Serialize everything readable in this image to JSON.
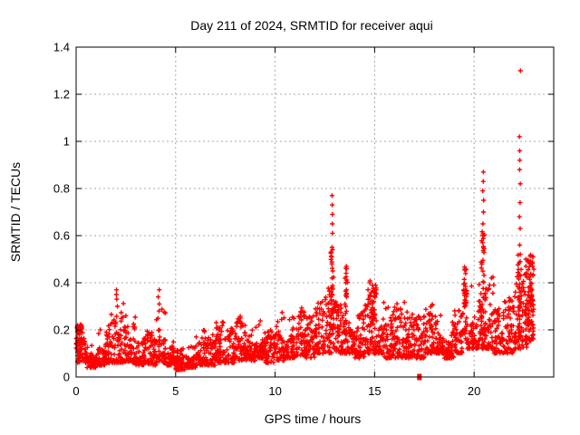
{
  "page": {
    "background": "#ffffff"
  },
  "chart_data": {
    "type": "scatter",
    "title": "Day 211 of 2024, SRMTID for receiver aqui",
    "xlabel": "GPS time / hours",
    "ylabel": "SRMTID / TECUs",
    "xlim": [
      0,
      24
    ],
    "ylim": [
      0,
      1.4
    ],
    "xticks": {
      "values": [
        0,
        5,
        10,
        15,
        20
      ],
      "labels": [
        "0",
        "5",
        "10",
        "15",
        "20"
      ]
    },
    "yticks": {
      "values": [
        0,
        0.2,
        0.4,
        0.6,
        0.8,
        1.0,
        1.2,
        1.4
      ],
      "labels": [
        "0",
        "0.2",
        "0.4",
        "0.6",
        "0.8",
        "1",
        "1.2",
        "1.4"
      ]
    },
    "grid": true,
    "legend": false,
    "marker": "plus",
    "marker_color": "#ff0000",
    "grid_color": "#a8a8a8",
    "border_color": "#000000",
    "data_end_hour": 23.0,
    "band_envelope_bins": [
      [
        0.0,
        0.06,
        0.23,
        55
      ],
      [
        0.5,
        0.04,
        0.15,
        55
      ],
      [
        1.0,
        0.05,
        0.22,
        55
      ],
      [
        1.5,
        0.06,
        0.3,
        55
      ],
      [
        2.0,
        0.06,
        0.32,
        55
      ],
      [
        2.5,
        0.06,
        0.26,
        55
      ],
      [
        3.0,
        0.05,
        0.18,
        55
      ],
      [
        3.5,
        0.05,
        0.2,
        55
      ],
      [
        4.0,
        0.06,
        0.3,
        55
      ],
      [
        4.5,
        0.05,
        0.16,
        55
      ],
      [
        5.0,
        0.03,
        0.12,
        55
      ],
      [
        5.5,
        0.04,
        0.15,
        55
      ],
      [
        6.0,
        0.05,
        0.2,
        55
      ],
      [
        6.5,
        0.05,
        0.18,
        55
      ],
      [
        7.0,
        0.06,
        0.24,
        55
      ],
      [
        7.5,
        0.06,
        0.22,
        55
      ],
      [
        8.0,
        0.07,
        0.26,
        55
      ],
      [
        8.5,
        0.07,
        0.2,
        55
      ],
      [
        9.0,
        0.08,
        0.24,
        55
      ],
      [
        9.5,
        0.06,
        0.2,
        55
      ],
      [
        10.0,
        0.07,
        0.28,
        55
      ],
      [
        10.5,
        0.08,
        0.26,
        55
      ],
      [
        11.0,
        0.09,
        0.3,
        55
      ],
      [
        11.5,
        0.08,
        0.26,
        55
      ],
      [
        12.0,
        0.1,
        0.32,
        55
      ],
      [
        12.5,
        0.1,
        0.4,
        55
      ],
      [
        13.0,
        0.1,
        0.35,
        55
      ],
      [
        13.5,
        0.1,
        0.4,
        55
      ],
      [
        14.0,
        0.08,
        0.3,
        55
      ],
      [
        14.5,
        0.1,
        0.42,
        55
      ],
      [
        15.0,
        0.1,
        0.36,
        55
      ],
      [
        15.5,
        0.08,
        0.3,
        55
      ],
      [
        16.0,
        0.08,
        0.32,
        55
      ],
      [
        16.5,
        0.08,
        0.28,
        55
      ],
      [
        17.0,
        0.08,
        0.26,
        55
      ],
      [
        17.5,
        0.1,
        0.32,
        55
      ],
      [
        18.0,
        0.1,
        0.3,
        55
      ],
      [
        18.5,
        0.08,
        0.26,
        55
      ],
      [
        19.0,
        0.1,
        0.3,
        55
      ],
      [
        19.5,
        0.12,
        0.4,
        55
      ],
      [
        20.0,
        0.12,
        0.42,
        55
      ],
      [
        20.5,
        0.12,
        0.45,
        55
      ],
      [
        21.0,
        0.1,
        0.3,
        55
      ],
      [
        21.5,
        0.1,
        0.35,
        55
      ],
      [
        22.0,
        0.12,
        0.45,
        55
      ],
      [
        22.5,
        0.15,
        0.5,
        55
      ]
    ],
    "dense_clusters": [
      [
        0.0,
        0.3,
        0.13,
        0.23,
        28
      ],
      [
        12.8,
        12.95,
        0.2,
        0.55,
        22
      ],
      [
        13.5,
        13.65,
        0.18,
        0.47,
        16
      ],
      [
        14.6,
        15.1,
        0.22,
        0.4,
        40
      ],
      [
        19.45,
        19.65,
        0.3,
        0.47,
        26
      ],
      [
        20.35,
        20.55,
        0.15,
        0.62,
        30
      ],
      [
        22.2,
        22.4,
        0.15,
        0.55,
        30
      ],
      [
        22.55,
        22.7,
        0.12,
        0.45,
        22
      ],
      [
        22.7,
        23.0,
        0.3,
        0.52,
        40
      ]
    ],
    "spike_columns": [
      {
        "x": 2.05,
        "y": [
          0.3,
          0.33,
          0.35,
          0.37
        ]
      },
      {
        "x": 4.15,
        "y": [
          0.28,
          0.31,
          0.34,
          0.37
        ]
      },
      {
        "x": 12.87,
        "y": [
          0.38,
          0.42,
          0.45,
          0.48,
          0.51,
          0.55,
          0.61,
          0.65,
          0.69,
          0.73,
          0.77
        ]
      },
      {
        "x": 13.57,
        "y": [
          0.3,
          0.34,
          0.37,
          0.4,
          0.44,
          0.47
        ]
      },
      {
        "x": 20.45,
        "y": [
          0.55,
          0.6,
          0.65,
          0.7,
          0.75,
          0.79,
          0.83,
          0.87
        ]
      },
      {
        "x": 22.3,
        "y": [
          0.49,
          0.56,
          0.63,
          0.68,
          0.74,
          0.82,
          0.88,
          0.92,
          0.96,
          1.02,
          1.3
        ]
      },
      {
        "x": 22.62,
        "y": [
          0.47,
          0.5
        ]
      }
    ],
    "square_marker_point": {
      "x": 17.25,
      "y": 0
    }
  }
}
